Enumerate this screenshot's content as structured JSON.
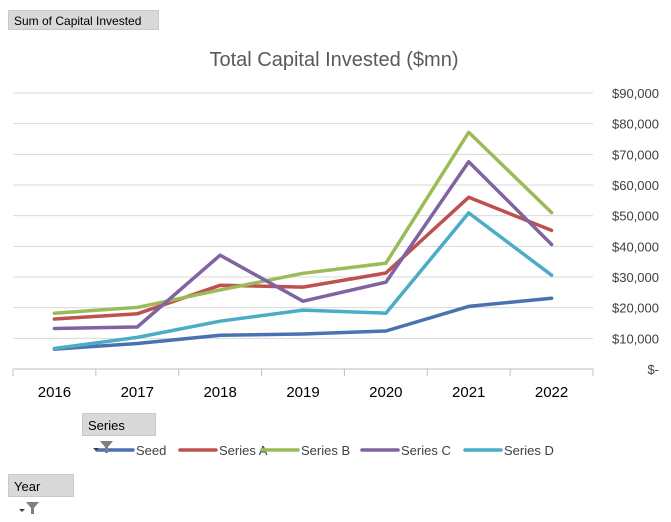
{
  "pivot": {
    "value_field_label": "Sum of Capital Invested",
    "legend_field_label": "Series",
    "axis_field_label": "Year",
    "filter_icon": "filter-funnel-icon"
  },
  "chart_data": {
    "type": "line",
    "title": "Total Capital Invested ($mn)",
    "xlabel": "",
    "ylabel": "",
    "categories": [
      "2016",
      "2017",
      "2018",
      "2019",
      "2020",
      "2021",
      "2022"
    ],
    "ylim": [
      0,
      90000
    ],
    "yticks": [
      0,
      10000,
      20000,
      30000,
      40000,
      50000,
      60000,
      70000,
      80000,
      90000
    ],
    "ytick_labels": [
      "$-",
      "$10,000",
      "$20,000",
      "$30,000",
      "$40,000",
      "$50,000",
      "$60,000",
      "$70,000",
      "$80,000",
      "$90,000"
    ],
    "y_axis_side": "right",
    "grid": true,
    "legend_position": "bottom",
    "series": [
      {
        "name": "Seed",
        "color": "#4a72b0",
        "values": [
          6500,
          8300,
          11000,
          11400,
          12400,
          20400,
          23100
        ]
      },
      {
        "name": "Series A",
        "color": "#c0504d",
        "values": [
          16300,
          18000,
          27300,
          26700,
          31300,
          56000,
          45200
        ]
      },
      {
        "name": "Series B",
        "color": "#9bbb59",
        "values": [
          18200,
          20100,
          25800,
          31200,
          34500,
          77200,
          51000
        ]
      },
      {
        "name": "Series C",
        "color": "#8064a2",
        "values": [
          13200,
          13700,
          37100,
          22100,
          28300,
          67600,
          40600
        ]
      },
      {
        "name": "Series D",
        "color": "#4bacc6",
        "values": [
          6700,
          10300,
          15600,
          19200,
          18200,
          50900,
          30600
        ]
      }
    ]
  }
}
